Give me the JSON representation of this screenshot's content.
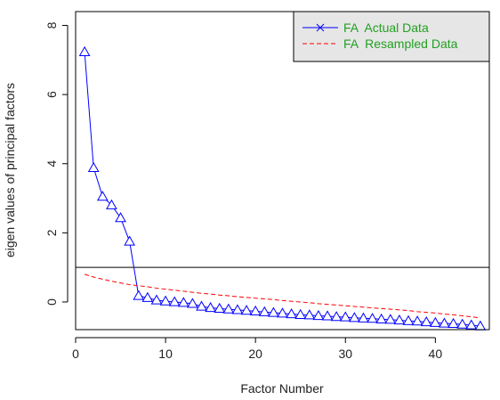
{
  "chart_data": {
    "type": "line",
    "title": "",
    "xlabel": "Factor Number",
    "ylabel": "eigen values of principal factors",
    "xlim": [
      0,
      46
    ],
    "ylim": [
      -0.8,
      8.4
    ],
    "x_ticks": [
      0,
      10,
      20,
      30,
      40
    ],
    "y_ticks": [
      0,
      2,
      4,
      6,
      8
    ],
    "reference_line_y": 1,
    "legend_position": "top-right",
    "x": [
      1,
      2,
      3,
      4,
      5,
      6,
      7,
      8,
      9,
      10,
      11,
      12,
      13,
      14,
      15,
      16,
      17,
      18,
      19,
      20,
      21,
      22,
      23,
      24,
      25,
      26,
      27,
      28,
      29,
      30,
      31,
      32,
      33,
      34,
      35,
      36,
      37,
      38,
      39,
      40,
      41,
      42,
      43,
      44,
      45
    ],
    "series": [
      {
        "name": "FA  Actual Data",
        "color": "#0000ff",
        "line_style": "solid",
        "legend_marker": "x",
        "point_marker": "triangle",
        "values": [
          7.23,
          3.88,
          3.05,
          2.8,
          2.43,
          1.75,
          0.18,
          0.12,
          0.05,
          0.02,
          0.0,
          -0.02,
          -0.05,
          -0.13,
          -0.17,
          -0.19,
          -0.21,
          -0.23,
          -0.25,
          -0.27,
          -0.29,
          -0.31,
          -0.33,
          -0.35,
          -0.37,
          -0.38,
          -0.4,
          -0.41,
          -0.43,
          -0.44,
          -0.46,
          -0.47,
          -0.48,
          -0.5,
          -0.51,
          -0.53,
          -0.55,
          -0.56,
          -0.58,
          -0.6,
          -0.62,
          -0.63,
          -0.65,
          -0.67,
          -0.7
        ]
      },
      {
        "name": "FA  Resampled Data",
        "color": "#ff0000",
        "line_style": "dashed",
        "values": [
          0.8,
          0.72,
          0.66,
          0.6,
          0.55,
          0.5,
          0.47,
          0.44,
          0.4,
          0.37,
          0.34,
          0.31,
          0.28,
          0.25,
          0.23,
          0.2,
          0.18,
          0.15,
          0.13,
          0.11,
          0.09,
          0.07,
          0.04,
          0.02,
          0.0,
          -0.02,
          -0.05,
          -0.07,
          -0.09,
          -0.11,
          -0.13,
          -0.15,
          -0.17,
          -0.19,
          -0.21,
          -0.23,
          -0.25,
          -0.28,
          -0.3,
          -0.32,
          -0.35,
          -0.37,
          -0.4,
          -0.43,
          -0.46
        ]
      }
    ],
    "legend_text_color": "#22a022",
    "legend_background": "#e6e6e6"
  }
}
